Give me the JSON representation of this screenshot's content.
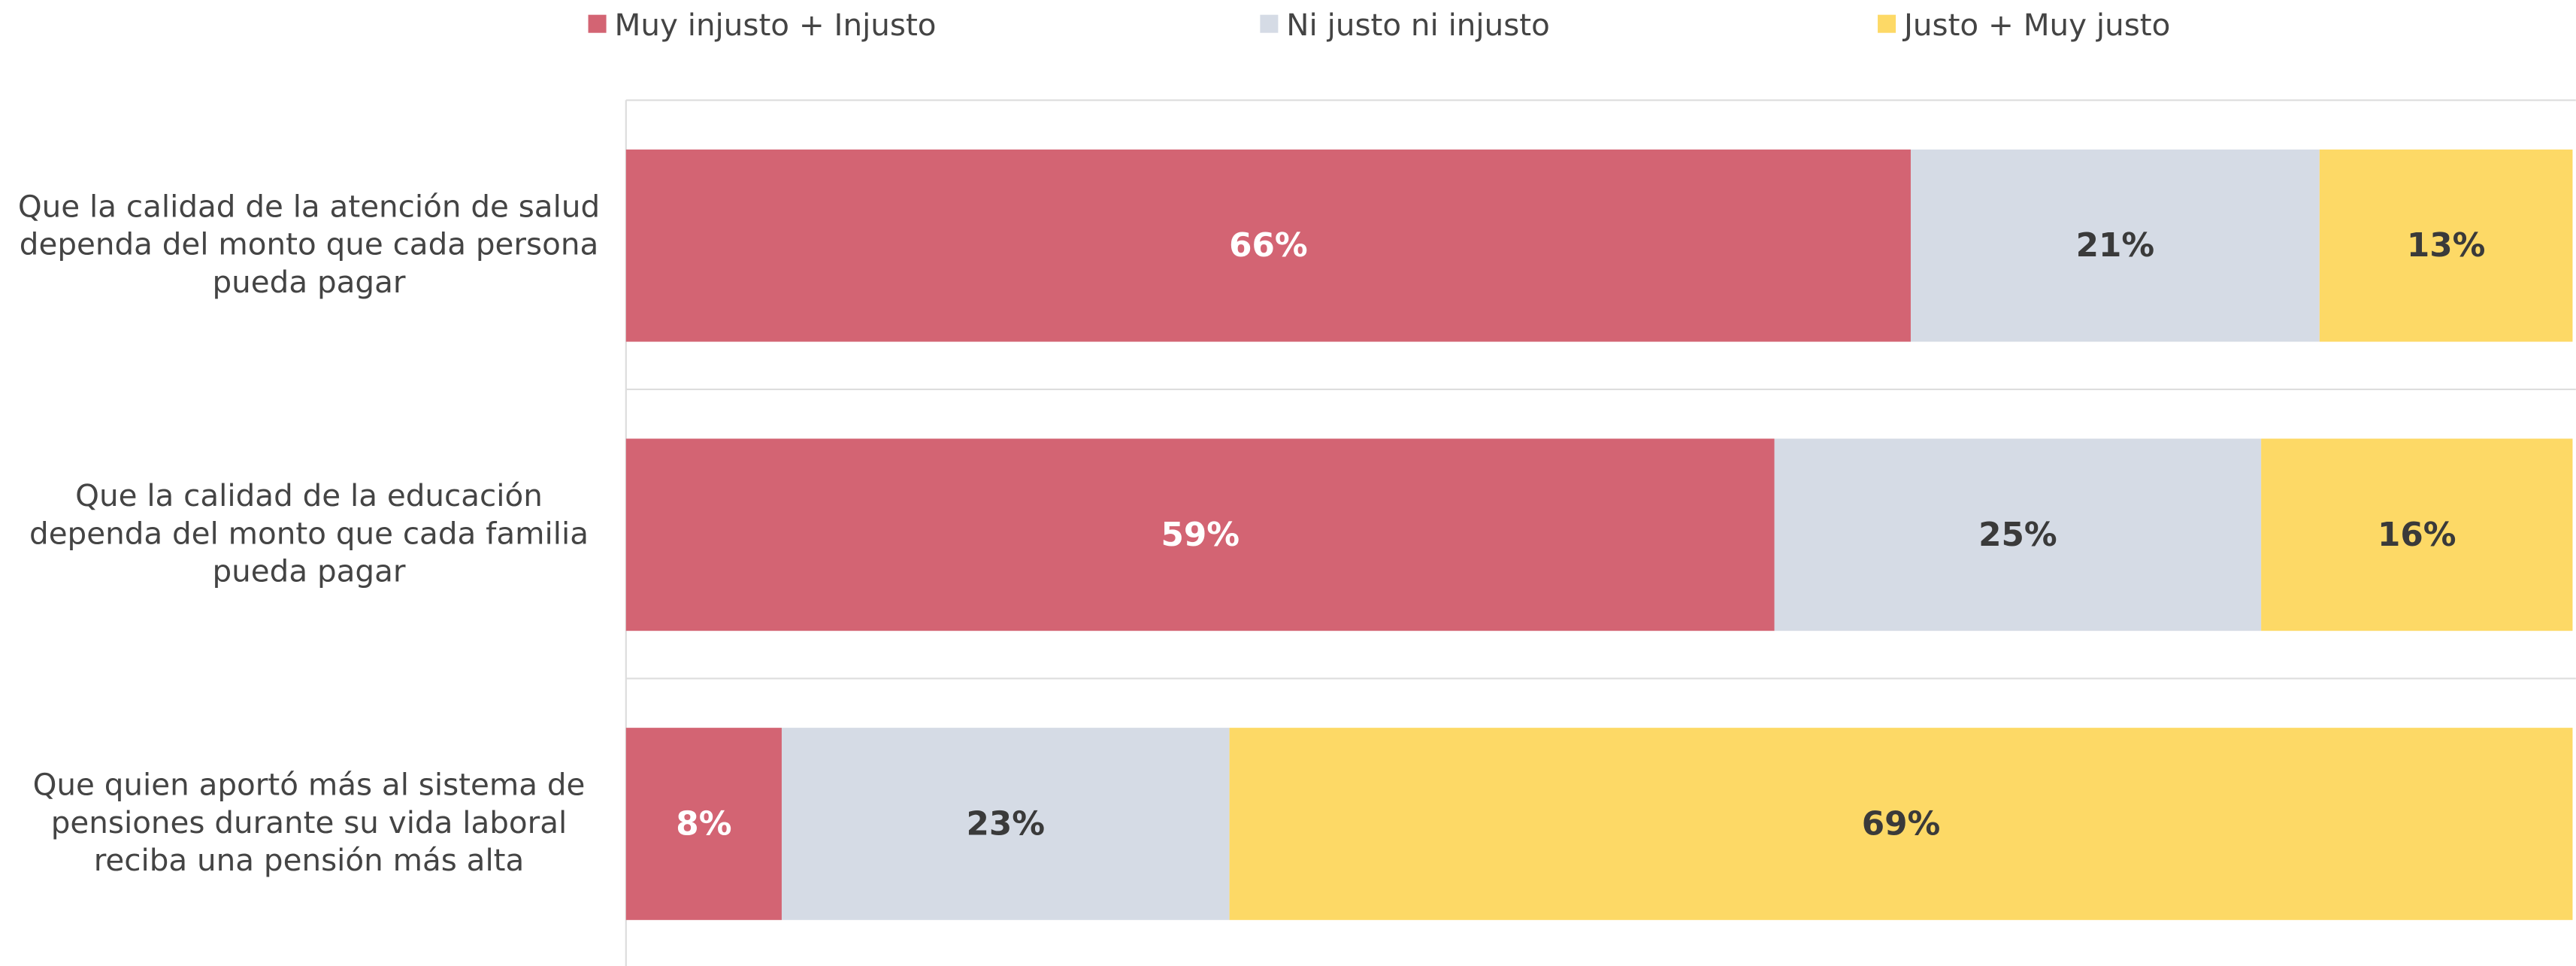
{
  "chart_data": {
    "type": "stacked_barh",
    "categories": [
      "Que la calidad de la atención de salud dependa del monto que cada persona pueda pagar",
      "Que la calidad de la educación dependa del monto que cada familia pueda pagar",
      "Que quien aportó más al sistema de pensiones durante su vida laboral reciba una pensión más alta"
    ],
    "series": [
      {
        "name": "Muy injusto + Injusto",
        "color": "#d36473",
        "values": [
          66,
          59,
          8
        ],
        "value_labels": [
          "66%",
          "59%",
          "8%"
        ]
      },
      {
        "name": "Ni justo ni injusto",
        "color": "#d5dbe5",
        "values": [
          21,
          25,
          23
        ],
        "value_labels": [
          "21%",
          "25%",
          "23%"
        ]
      },
      {
        "name": "Justo + Muy justo",
        "color": "#fdd966",
        "values": [
          13,
          16,
          69
        ],
        "value_labels": [
          "13%",
          "16%",
          "69%"
        ]
      }
    ],
    "xlim": [
      0,
      100
    ],
    "legend": "top"
  }
}
